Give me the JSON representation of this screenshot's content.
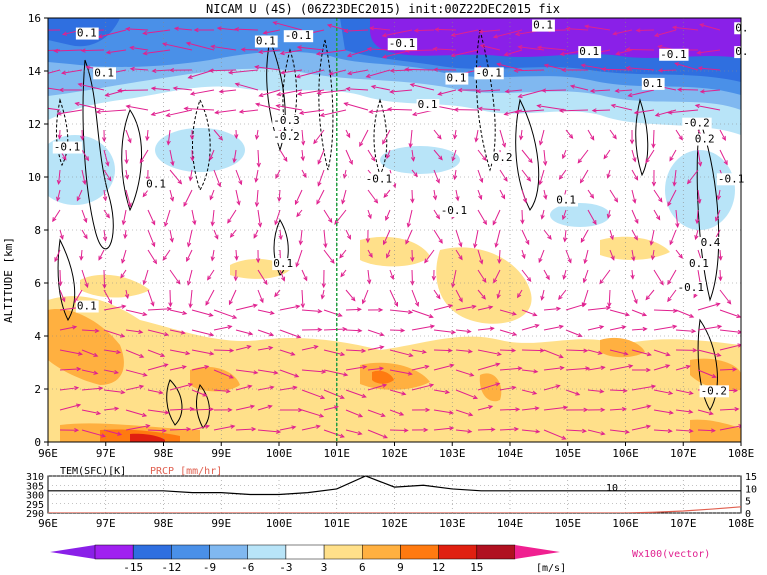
{
  "chart_data": [
    {
      "type": "heatmap",
      "title": "NICAM U (4S) (06Z23DEC2015) init:00Z22DEC2015 fix",
      "ylabel": "ALTITUDE [km]",
      "xlabel": "",
      "xlim": [
        96,
        108
      ],
      "ylim": [
        0,
        16
      ],
      "x_ticks": [
        "96E",
        "97E",
        "98E",
        "99E",
        "100E",
        "101E",
        "102E",
        "103E",
        "104E",
        "105E",
        "106E",
        "107E",
        "108E"
      ],
      "y_ticks": [
        "0",
        "2",
        "4",
        "6",
        "8",
        "10",
        "12",
        "14",
        "16"
      ],
      "grid": true,
      "marker_line_x": 101,
      "contour_labels": [
        {
          "text": "0.1",
          "x": 96.5,
          "y": 15.3
        },
        {
          "text": "0.1",
          "x": 99.6,
          "y": 15.0
        },
        {
          "text": "-0.1",
          "x": 100.1,
          "y": 15.2
        },
        {
          "text": "-0.1",
          "x": 101.9,
          "y": 14.9
        },
        {
          "text": "0.1",
          "x": 104.4,
          "y": 15.6
        },
        {
          "text": "0.1",
          "x": 105.2,
          "y": 14.6
        },
        {
          "text": "-0.1",
          "x": 106.6,
          "y": 14.5
        },
        {
          "text": "0.",
          "x": 107.9,
          "y": 15.5
        },
        {
          "text": "0.",
          "x": 107.9,
          "y": 14.6
        },
        {
          "text": "0.1",
          "x": 102.9,
          "y": 13.6
        },
        {
          "text": "-0.1",
          "x": 103.4,
          "y": 13.8
        },
        {
          "text": "0.1",
          "x": 106.3,
          "y": 13.4
        },
        {
          "text": "0.1",
          "x": 102.4,
          "y": 12.6
        },
        {
          "text": "0.1",
          "x": 96.8,
          "y": 13.8
        },
        {
          "text": "-0.3",
          "x": 99.9,
          "y": 12.0
        },
        {
          "text": "-0.2",
          "x": 99.9,
          "y": 11.4
        },
        {
          "text": "-0.2",
          "x": 107.0,
          "y": 11.9
        },
        {
          "text": "0.2",
          "x": 107.2,
          "y": 11.3
        },
        {
          "text": "-0.1",
          "x": 96.1,
          "y": 11.0
        },
        {
          "text": "0.2",
          "x": 103.7,
          "y": 10.6
        },
        {
          "text": "-0.1",
          "x": 101.5,
          "y": 9.8
        },
        {
          "text": "-0.1",
          "x": 102.8,
          "y": 8.6
        },
        {
          "text": "0.1",
          "x": 97.7,
          "y": 9.6
        },
        {
          "text": "0.1",
          "x": 104.8,
          "y": 9.0
        },
        {
          "text": "-0.1",
          "x": 107.6,
          "y": 9.8
        },
        {
          "text": "0.4",
          "x": 107.3,
          "y": 7.4
        },
        {
          "text": "0.1",
          "x": 99.9,
          "y": 6.6
        },
        {
          "text": "0.1",
          "x": 107.1,
          "y": 6.6
        },
        {
          "text": "-0.1",
          "x": 106.9,
          "y": 5.7
        },
        {
          "text": "0.1",
          "x": 96.5,
          "y": 5.0
        },
        {
          "text": "-0.2",
          "x": 107.3,
          "y": 1.8
        }
      ]
    },
    {
      "type": "line",
      "series": [
        {
          "name": "TEM(SFC)[K]",
          "color": "#000000",
          "values": [
            302,
            302,
            302,
            302,
            302,
            301,
            301,
            300,
            300,
            301,
            303,
            310,
            304,
            305,
            303,
            302,
            302,
            302,
            302,
            302,
            302,
            302,
            302,
            302,
            302
          ]
        },
        {
          "name": "PRCP [mm/hr]",
          "color": "#e06050",
          "values": [
            0,
            0,
            0,
            0,
            0,
            0,
            0,
            0,
            0,
            0,
            0,
            0,
            0,
            0,
            0,
            0,
            0,
            0,
            0,
            0,
            0,
            0.3,
            0.8,
            1.6,
            2.5
          ]
        }
      ],
      "x": [
        96,
        96.5,
        97,
        97.5,
        98,
        98.5,
        99,
        99.5,
        100,
        100.5,
        101,
        101.5,
        102,
        102.5,
        103,
        103.5,
        104,
        104.5,
        105,
        105.5,
        106,
        106.5,
        107,
        107.5,
        108
      ],
      "x_ticks": [
        "96E",
        "97E",
        "98E",
        "99E",
        "100E",
        "101E",
        "102E",
        "103E",
        "104E",
        "105E",
        "106E",
        "107E",
        "108E"
      ],
      "left_ticks": [
        "310",
        "305",
        "300",
        "295",
        "290"
      ],
      "right_ticks": [
        "15",
        "10",
        "5",
        "0"
      ],
      "ylim_left": [
        290,
        310
      ],
      "ylim_right": [
        0,
        15
      ],
      "annotation": "10"
    }
  ],
  "colorbar": {
    "ticks": [
      "-15",
      "-12",
      "-9",
      "-6",
      "-3",
      "3",
      "6",
      "9",
      "12",
      "15"
    ],
    "colors": [
      "#a020f0",
      "#2f6fe0",
      "#4a90e8",
      "#80b8f0",
      "#b8e4f8",
      "#ffffff",
      "#ffe08a",
      "#ffb040",
      "#ff7a10",
      "#e02010",
      "#b01020"
    ],
    "low_color": "#8a20e8",
    "high_color": "#f02090",
    "unit": "[m/s]",
    "vector_note": "Wx100(vector)"
  }
}
